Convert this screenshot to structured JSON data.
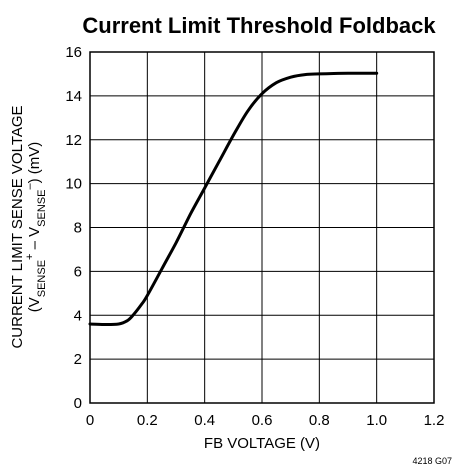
{
  "chart_data": {
    "type": "line",
    "title": "Current Limit Threshold Foldback",
    "xlabel": "FB VOLTAGE (V)",
    "ylabel": {
      "line1": "CURRENT LIMIT SENSE VOLTAGE",
      "open": "(V",
      "sub1": "SENSE",
      "sup1": "+",
      "dash": " – V",
      "sub2": "SENSE",
      "sup2": "–",
      "close": ") (mV)"
    },
    "xlim": [
      0,
      1.2
    ],
    "ylim": [
      0,
      16
    ],
    "x_ticks": [
      "0",
      "0.2",
      "0.4",
      "0.6",
      "0.8",
      "1.0",
      "1.2"
    ],
    "y_ticks": [
      "0",
      "2",
      "4",
      "6",
      "8",
      "10",
      "12",
      "14",
      "16"
    ],
    "x_tick_values": [
      0,
      0.2,
      0.4,
      0.6,
      0.8,
      1.0,
      1.2
    ],
    "y_tick_values": [
      0,
      2,
      4,
      6,
      8,
      10,
      12,
      14,
      16
    ],
    "grid": true,
    "series": [
      {
        "x": [
          0,
          0.05,
          0.1,
          0.13,
          0.15,
          0.18,
          0.2,
          0.25,
          0.3,
          0.35,
          0.4,
          0.45,
          0.5,
          0.55,
          0.6,
          0.65,
          0.7,
          0.75,
          0.8,
          0.85,
          0.9,
          0.95,
          1.0
        ],
        "y": [
          3.6,
          3.58,
          3.6,
          3.75,
          4.0,
          4.5,
          4.9,
          6.1,
          7.3,
          8.6,
          9.8,
          11.0,
          12.2,
          13.3,
          14.1,
          14.6,
          14.85,
          14.97,
          15.0,
          15.02,
          15.03,
          15.03,
          15.03
        ]
      }
    ],
    "footnote": "4218 G07"
  }
}
